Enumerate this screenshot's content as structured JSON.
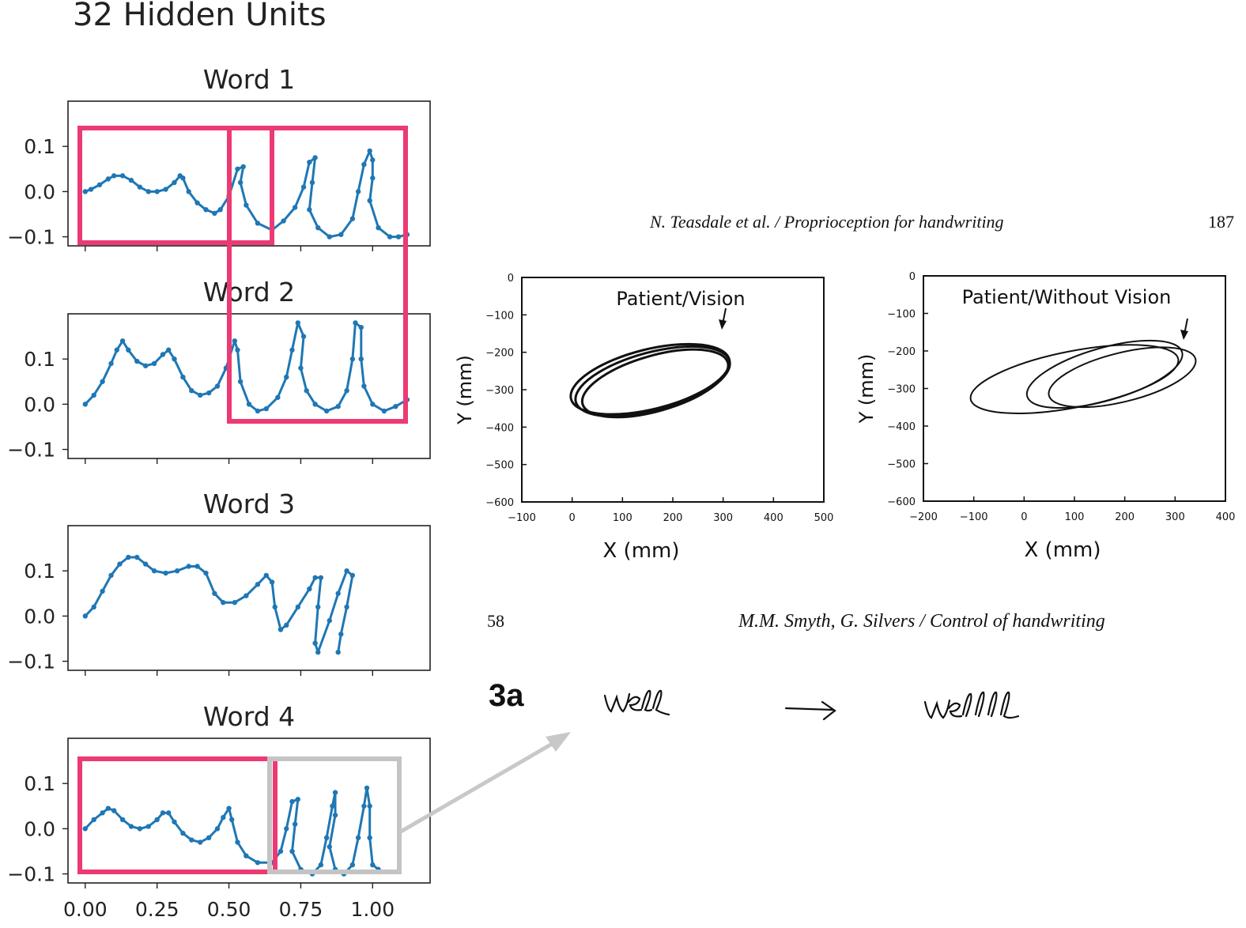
{
  "title": "32 Hidden Units",
  "chart_data": [
    {
      "type": "line",
      "title": "Word 1",
      "ylim": [
        -0.12,
        0.2
      ],
      "xlim": [
        -0.06,
        1.2
      ],
      "yticks": [
        "0.1",
        "0.0",
        "−0.1"
      ],
      "xticks": [
        0,
        0.25,
        0.5,
        0.75,
        1.0
      ],
      "series": [
        {
          "points": [
            [
              0,
              0
            ],
            [
              0.02,
              0.005
            ],
            [
              0.05,
              0.015
            ],
            [
              0.08,
              0.028
            ],
            [
              0.1,
              0.035
            ],
            [
              0.13,
              0.035
            ],
            [
              0.16,
              0.025
            ],
            [
              0.19,
              0.01
            ],
            [
              0.22,
              0
            ],
            [
              0.25,
              0
            ],
            [
              0.28,
              0.005
            ],
            [
              0.31,
              0.02
            ],
            [
              0.33,
              0.035
            ],
            [
              0.34,
              0.03
            ],
            [
              0.36,
              0
            ],
            [
              0.39,
              -0.025
            ],
            [
              0.42,
              -0.04
            ],
            [
              0.45,
              -0.048
            ],
            [
              0.47,
              -0.04
            ],
            [
              0.5,
              -0.01
            ],
            [
              0.53,
              0.05
            ],
            [
              0.55,
              0.055
            ],
            [
              0.54,
              0.02
            ],
            [
              0.56,
              -0.03
            ],
            [
              0.6,
              -0.07
            ],
            [
              0.65,
              -0.085
            ],
            [
              0.69,
              -0.065
            ],
            [
              0.73,
              -0.035
            ],
            [
              0.76,
              0.01
            ],
            [
              0.78,
              0.065
            ],
            [
              0.8,
              0.075
            ],
            [
              0.79,
              0.02
            ],
            [
              0.78,
              -0.04
            ],
            [
              0.81,
              -0.08
            ],
            [
              0.85,
              -0.1
            ],
            [
              0.89,
              -0.095
            ],
            [
              0.93,
              -0.06
            ],
            [
              0.95,
              0
            ],
            [
              0.97,
              0.06
            ],
            [
              0.99,
              0.09
            ],
            [
              1,
              0.07
            ],
            [
              1,
              0.03
            ],
            [
              0.99,
              -0.02
            ],
            [
              1.02,
              -0.08
            ],
            [
              1.06,
              -0.1
            ],
            [
              1.09,
              -0.1
            ],
            [
              1.12,
              -0.095
            ]
          ]
        }
      ]
    },
    {
      "type": "line",
      "title": "Word 2",
      "ylim": [
        -0.12,
        0.2
      ],
      "xlim": [
        -0.06,
        1.2
      ],
      "yticks": [
        "0.1",
        "0.0",
        "−0.1"
      ],
      "xticks": [
        0,
        0.25,
        0.5,
        0.75,
        1.0
      ],
      "series": [
        {
          "points": [
            [
              0,
              0
            ],
            [
              0.03,
              0.02
            ],
            [
              0.06,
              0.05
            ],
            [
              0.09,
              0.09
            ],
            [
              0.11,
              0.12
            ],
            [
              0.13,
              0.14
            ],
            [
              0.15,
              0.12
            ],
            [
              0.18,
              0.095
            ],
            [
              0.21,
              0.085
            ],
            [
              0.24,
              0.09
            ],
            [
              0.27,
              0.11
            ],
            [
              0.29,
              0.12
            ],
            [
              0.31,
              0.1
            ],
            [
              0.34,
              0.06
            ],
            [
              0.37,
              0.03
            ],
            [
              0.4,
              0.02
            ],
            [
              0.43,
              0.025
            ],
            [
              0.46,
              0.04
            ],
            [
              0.49,
              0.08
            ],
            [
              0.52,
              0.14
            ],
            [
              0.53,
              0.12
            ],
            [
              0.54,
              0.05
            ],
            [
              0.57,
              0
            ],
            [
              0.6,
              -0.015
            ],
            [
              0.63,
              -0.01
            ],
            [
              0.67,
              0.015
            ],
            [
              0.7,
              0.06
            ],
            [
              0.72,
              0.12
            ],
            [
              0.74,
              0.18
            ],
            [
              0.76,
              0.15
            ],
            [
              0.75,
              0.08
            ],
            [
              0.77,
              0.03
            ],
            [
              0.8,
              0
            ],
            [
              0.84,
              -0.015
            ],
            [
              0.88,
              -0.005
            ],
            [
              0.91,
              0.03
            ],
            [
              0.93,
              0.1
            ],
            [
              0.94,
              0.18
            ],
            [
              0.96,
              0.17
            ],
            [
              0.96,
              0.1
            ],
            [
              0.97,
              0.04
            ],
            [
              1,
              0
            ],
            [
              1.04,
              -0.015
            ],
            [
              1.08,
              -0.005
            ],
            [
              1.12,
              0.01
            ]
          ]
        }
      ]
    },
    {
      "type": "line",
      "title": "Word 3",
      "ylim": [
        -0.12,
        0.2
      ],
      "xlim": [
        -0.06,
        1.2
      ],
      "yticks": [
        "0.1",
        "0.0",
        "−0.1"
      ],
      "xticks": [
        0,
        0.25,
        0.5,
        0.75,
        1.0
      ],
      "series": [
        {
          "points": [
            [
              0,
              0
            ],
            [
              0.03,
              0.02
            ],
            [
              0.06,
              0.055
            ],
            [
              0.09,
              0.09
            ],
            [
              0.12,
              0.115
            ],
            [
              0.15,
              0.13
            ],
            [
              0.18,
              0.13
            ],
            [
              0.21,
              0.115
            ],
            [
              0.24,
              0.1
            ],
            [
              0.28,
              0.095
            ],
            [
              0.32,
              0.1
            ],
            [
              0.36,
              0.11
            ],
            [
              0.39,
              0.11
            ],
            [
              0.42,
              0.095
            ],
            [
              0.45,
              0.05
            ],
            [
              0.48,
              0.03
            ],
            [
              0.52,
              0.03
            ],
            [
              0.56,
              0.045
            ],
            [
              0.6,
              0.07
            ],
            [
              0.63,
              0.09
            ],
            [
              0.65,
              0.075
            ],
            [
              0.66,
              0.02
            ],
            [
              0.68,
              -0.03
            ],
            [
              0.7,
              -0.02
            ],
            [
              0.74,
              0.02
            ],
            [
              0.78,
              0.06
            ],
            [
              0.8,
              0.085
            ],
            [
              0.82,
              0.085
            ],
            [
              0.81,
              0.02
            ],
            [
              0.8,
              -0.06
            ],
            [
              0.81,
              -0.08
            ],
            [
              0.85,
              -0.01
            ],
            [
              0.88,
              0.05
            ],
            [
              0.91,
              0.1
            ],
            [
              0.93,
              0.09
            ],
            [
              0.91,
              0.02
            ],
            [
              0.89,
              -0.04
            ],
            [
              0.88,
              -0.08
            ]
          ]
        }
      ]
    },
    {
      "type": "line",
      "title": "Word 4",
      "ylim": [
        -0.12,
        0.2
      ],
      "xlim": [
        -0.06,
        1.2
      ],
      "yticks": [
        "0.1",
        "0.0",
        "−0.1"
      ],
      "xticks": [
        "0.00",
        "0.25",
        "0.50",
        "0.75",
        "1.00"
      ],
      "series": [
        {
          "points": [
            [
              0,
              0
            ],
            [
              0.03,
              0.02
            ],
            [
              0.06,
              0.035
            ],
            [
              0.08,
              0.045
            ],
            [
              0.1,
              0.04
            ],
            [
              0.13,
              0.02
            ],
            [
              0.16,
              0.005
            ],
            [
              0.19,
              0
            ],
            [
              0.22,
              0.005
            ],
            [
              0.25,
              0.02
            ],
            [
              0.27,
              0.035
            ],
            [
              0.29,
              0.035
            ],
            [
              0.31,
              0.015
            ],
            [
              0.34,
              -0.01
            ],
            [
              0.37,
              -0.025
            ],
            [
              0.4,
              -0.03
            ],
            [
              0.43,
              -0.02
            ],
            [
              0.46,
              0
            ],
            [
              0.48,
              0.025
            ],
            [
              0.5,
              0.045
            ],
            [
              0.51,
              0.02
            ],
            [
              0.53,
              -0.03
            ],
            [
              0.56,
              -0.06
            ],
            [
              0.6,
              -0.075
            ],
            [
              0.65,
              -0.075
            ],
            [
              0.68,
              -0.05
            ],
            [
              0.7,
              0
            ],
            [
              0.72,
              0.06
            ],
            [
              0.74,
              0.065
            ],
            [
              0.73,
              0.01
            ],
            [
              0.72,
              -0.05
            ],
            [
              0.75,
              -0.09
            ],
            [
              0.79,
              -0.1
            ],
            [
              0.82,
              -0.08
            ],
            [
              0.84,
              -0.02
            ],
            [
              0.86,
              0.05
            ],
            [
              0.87,
              0.08
            ],
            [
              0.87,
              0.03
            ],
            [
              0.85,
              -0.04
            ],
            [
              0.87,
              -0.09
            ],
            [
              0.9,
              -0.1
            ],
            [
              0.93,
              -0.08
            ],
            [
              0.95,
              -0.02
            ],
            [
              0.97,
              0.05
            ],
            [
              0.98,
              0.09
            ],
            [
              0.99,
              0.05
            ],
            [
              0.99,
              -0.02
            ],
            [
              1,
              -0.08
            ],
            [
              1.02,
              -0.09
            ]
          ]
        }
      ]
    },
    {
      "type": "line",
      "title": "Patient/Vision",
      "xlabel": "X (mm)",
      "ylabel": "Y (mm)",
      "xlim": [
        -100,
        500
      ],
      "ylim": [
        -600,
        0
      ],
      "xticks": [
        "−100",
        "0",
        "100",
        "200",
        "300",
        "400",
        "500"
      ],
      "yticks": [
        "0",
        "−100",
        "−200",
        "−300",
        "−400",
        "−500",
        "−600"
      ],
      "series": [
        {
          "ellipses": [
            [
              160,
              -278,
              158,
              78,
              15
            ],
            [
              165,
              -283,
              150,
              74,
              16
            ],
            [
              155,
              -272,
              162,
              80,
              14
            ]
          ]
        }
      ]
    },
    {
      "type": "line",
      "title": "Patient/Without Vision",
      "xlabel": "X (mm)",
      "ylabel": "Y (mm)",
      "xlim": [
        -200,
        400
      ],
      "ylim": [
        -600,
        0
      ],
      "xticks": [
        "−200",
        "−100",
        "0",
        "100",
        "200",
        "300",
        "400"
      ],
      "yticks": [
        "0",
        "−100",
        "−200",
        "−300",
        "−400",
        "−500",
        "−600"
      ],
      "series": [
        {
          "ellipses": [
            [
              100,
              -275,
              210,
              75,
              11
            ],
            [
              160,
              -262,
              160,
              70,
              16
            ],
            [
              195,
              -270,
              150,
              65,
              14
            ]
          ]
        }
      ]
    }
  ],
  "references": {
    "top_header": "N. Teasdale et al.  / Proprioception for handwriting",
    "top_page": "187",
    "bottom_page": "58",
    "bottom_header": "M.M. Smyth, G. Silvers  / Control of handwriting",
    "figure_label": "3a",
    "word_before": "well",
    "word_after": "wellll"
  },
  "colors": {
    "series": "#1f77b4",
    "highlight": "#ec3a73",
    "gray_box": "#c4c4c4",
    "arrow": "#c8c8c8"
  }
}
